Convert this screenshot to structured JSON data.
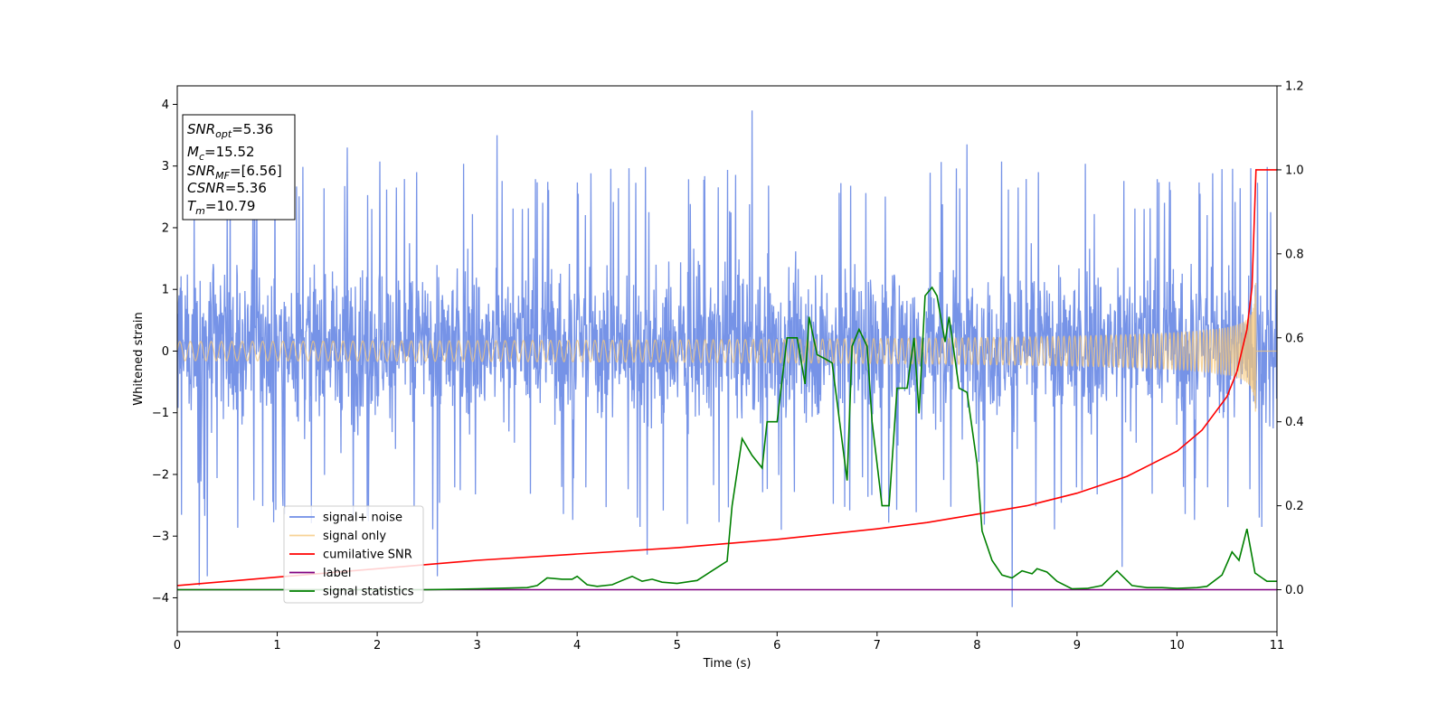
{
  "chart_data": {
    "type": "line",
    "title": "",
    "xlabel": "Time (s)",
    "ylabel": "Whitened strain",
    "xlim": [
      0,
      11
    ],
    "ylim": [
      -4.55,
      4.3
    ],
    "y2lim": [
      -0.1,
      1.2
    ],
    "x_ticks": [
      0,
      1,
      2,
      3,
      4,
      5,
      6,
      7,
      8,
      9,
      10,
      11
    ],
    "y_ticks": [
      -4,
      -3,
      -2,
      -1,
      0,
      1,
      2,
      3,
      4
    ],
    "y2_ticks": [
      0.0,
      0.2,
      0.4,
      0.6,
      0.8,
      1.0,
      1.2
    ],
    "grid": false,
    "legend_position": "lower-left",
    "annotation": {
      "lines": [
        {
          "main": "SNR",
          "sub": "opt",
          "value": "=5.36"
        },
        {
          "main": "M",
          "sub": "c",
          "value": "=15.52"
        },
        {
          "main": "SNR",
          "sub": "MF",
          "value": "=[6.56]"
        },
        {
          "main": "CSNR",
          "sub": "",
          "value": "=5.36"
        },
        {
          "main": "T",
          "sub": "m",
          "value": "=10.79"
        }
      ]
    },
    "series": [
      {
        "name": "signal+ noise",
        "color": "#6f8de6",
        "axis": "left",
        "kind": "noise",
        "x_range": [
          0,
          11
        ],
        "typical_envelope": [
          -1.9,
          2.1
        ],
        "extremes": [
          {
            "x": 0.22,
            "y": -3.8
          },
          {
            "x": 0.3,
            "y": -3.65
          },
          {
            "x": 1.7,
            "y": 3.3
          },
          {
            "x": 2.6,
            "y": -3.65
          },
          {
            "x": 3.2,
            "y": 3.5
          },
          {
            "x": 4.7,
            "y": -3.3
          },
          {
            "x": 5.75,
            "y": 3.9
          },
          {
            "x": 7.9,
            "y": 3.35
          },
          {
            "x": 8.35,
            "y": -4.15
          },
          {
            "x": 9.45,
            "y": -3.5
          },
          {
            "x": 10.45,
            "y": 2.95
          }
        ]
      },
      {
        "name": "signal only",
        "color": "#f5c77a",
        "axis": "left",
        "kind": "chirp",
        "merger_time": 10.79,
        "peak_amplitude": 1.12
      },
      {
        "name": "cumilative SNR",
        "color": "#ff0000",
        "axis": "right",
        "points": [
          [
            0,
            0.01
          ],
          [
            1,
            0.03
          ],
          [
            2,
            0.05
          ],
          [
            3,
            0.07
          ],
          [
            4,
            0.085
          ],
          [
            5,
            0.1
          ],
          [
            6,
            0.12
          ],
          [
            7,
            0.145
          ],
          [
            7.5,
            0.16
          ],
          [
            8,
            0.18
          ],
          [
            8.5,
            0.2
          ],
          [
            9,
            0.23
          ],
          [
            9.5,
            0.27
          ],
          [
            10,
            0.33
          ],
          [
            10.25,
            0.38
          ],
          [
            10.5,
            0.46
          ],
          [
            10.6,
            0.52
          ],
          [
            10.7,
            0.62
          ],
          [
            10.75,
            0.72
          ],
          [
            10.79,
            1.0
          ],
          [
            11,
            1.0
          ]
        ]
      },
      {
        "name": "label",
        "color": "#800080",
        "axis": "right",
        "points": [
          [
            0,
            0.0
          ],
          [
            11,
            0.0
          ]
        ]
      },
      {
        "name": "signal statistics",
        "color": "#008000",
        "axis": "right",
        "points": [
          [
            0,
            0.0
          ],
          [
            1,
            0.0
          ],
          [
            2,
            0.0
          ],
          [
            2.5,
            0.0
          ],
          [
            3.0,
            0.002
          ],
          [
            3.5,
            0.005
          ],
          [
            3.6,
            0.01
          ],
          [
            3.7,
            0.028
          ],
          [
            3.85,
            0.025
          ],
          [
            3.95,
            0.025
          ],
          [
            4.0,
            0.032
          ],
          [
            4.1,
            0.012
          ],
          [
            4.2,
            0.008
          ],
          [
            4.35,
            0.012
          ],
          [
            4.45,
            0.022
          ],
          [
            4.55,
            0.032
          ],
          [
            4.65,
            0.02
          ],
          [
            4.75,
            0.025
          ],
          [
            4.85,
            0.018
          ],
          [
            5.0,
            0.015
          ],
          [
            5.2,
            0.022
          ],
          [
            5.35,
            0.045
          ],
          [
            5.5,
            0.068
          ],
          [
            5.55,
            0.2
          ],
          [
            5.65,
            0.36
          ],
          [
            5.75,
            0.32
          ],
          [
            5.85,
            0.29
          ],
          [
            5.9,
            0.4
          ],
          [
            6.0,
            0.4
          ],
          [
            6.1,
            0.6
          ],
          [
            6.2,
            0.6
          ],
          [
            6.28,
            0.49
          ],
          [
            6.32,
            0.65
          ],
          [
            6.4,
            0.56
          ],
          [
            6.48,
            0.55
          ],
          [
            6.55,
            0.54
          ],
          [
            6.7,
            0.26
          ],
          [
            6.75,
            0.58
          ],
          [
            6.82,
            0.62
          ],
          [
            6.9,
            0.58
          ],
          [
            6.95,
            0.4
          ],
          [
            7.05,
            0.2
          ],
          [
            7.12,
            0.2
          ],
          [
            7.2,
            0.48
          ],
          [
            7.3,
            0.48
          ],
          [
            7.37,
            0.6
          ],
          [
            7.42,
            0.42
          ],
          [
            7.48,
            0.7
          ],
          [
            7.55,
            0.72
          ],
          [
            7.6,
            0.7
          ],
          [
            7.68,
            0.59
          ],
          [
            7.72,
            0.65
          ],
          [
            7.82,
            0.48
          ],
          [
            7.9,
            0.47
          ],
          [
            8.0,
            0.3
          ],
          [
            8.05,
            0.14
          ],
          [
            8.15,
            0.07
          ],
          [
            8.25,
            0.035
          ],
          [
            8.35,
            0.028
          ],
          [
            8.45,
            0.045
          ],
          [
            8.55,
            0.038
          ],
          [
            8.6,
            0.05
          ],
          [
            8.7,
            0.042
          ],
          [
            8.8,
            0.02
          ],
          [
            8.95,
            0.002
          ],
          [
            9.1,
            0.003
          ],
          [
            9.25,
            0.01
          ],
          [
            9.4,
            0.045
          ],
          [
            9.55,
            0.01
          ],
          [
            9.7,
            0.005
          ],
          [
            9.85,
            0.005
          ],
          [
            10.0,
            0.003
          ],
          [
            10.2,
            0.005
          ],
          [
            10.3,
            0.008
          ],
          [
            10.45,
            0.035
          ],
          [
            10.55,
            0.09
          ],
          [
            10.62,
            0.07
          ],
          [
            10.7,
            0.145
          ],
          [
            10.78,
            0.04
          ],
          [
            10.9,
            0.02
          ],
          [
            11.0,
            0.02
          ]
        ]
      }
    ]
  }
}
